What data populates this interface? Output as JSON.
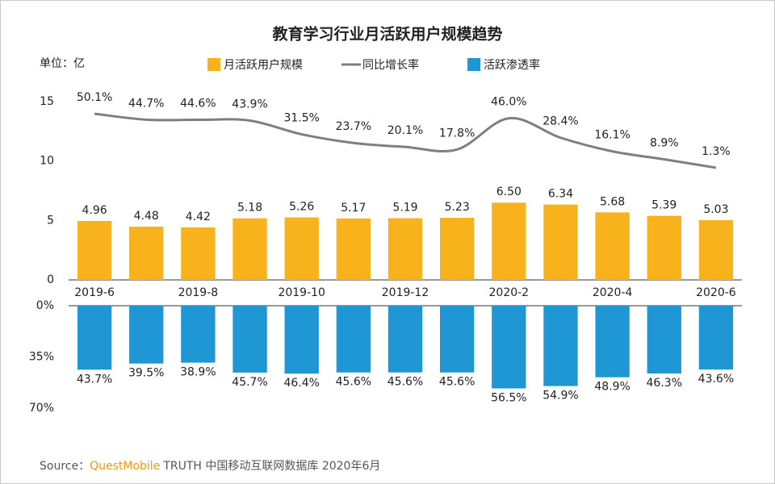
{
  "title": "教育学习行业月活跃用户规模趋势",
  "unit": "单位：亿",
  "source": {
    "prefix": "Source：",
    "brand": "QuestMobile",
    "text": "TRUTH 中国移动互联网数据库 2020年6月"
  },
  "chart_data": [
    {
      "type": "bar",
      "categories": [
        "2019-6",
        null,
        "2019-8",
        null,
        "2019-10",
        null,
        "2019-12",
        null,
        "2020-2",
        null,
        "2020-4",
        null,
        "2020-6"
      ],
      "ylim": [
        0,
        15
      ],
      "yticks": [
        0,
        5,
        10,
        15
      ],
      "y2lim": [
        -100,
        61
      ],
      "series": [
        {
          "name": "月活跃用户规模",
          "color": "#f8b21c",
          "values": [
            4.96,
            4.48,
            4.42,
            5.18,
            5.26,
            5.17,
            5.19,
            5.23,
            6.5,
            6.34,
            5.68,
            5.39,
            5.03
          ],
          "value_labels": [
            "4.96",
            "4.48",
            "4.42",
            "5.18",
            "5.26",
            "5.17",
            "5.19",
            "5.23",
            "6.50",
            "6.34",
            "5.68",
            "5.39",
            "5.03"
          ]
        },
        {
          "name": "同比增长率",
          "color": "#7f7f7f",
          "type": "line",
          "axis": "y2",
          "values": [
            50.1,
            44.7,
            44.6,
            43.9,
            31.5,
            23.7,
            20.1,
            17.8,
            46.0,
            28.4,
            16.1,
            8.9,
            1.3
          ],
          "value_labels": [
            "50.1%",
            "44.7%",
            "44.6%",
            "43.9%",
            "31.5%",
            "23.7%",
            "20.1%",
            "17.8%",
            "46.0%",
            "28.4%",
            "16.1%",
            "8.9%",
            "1.3%"
          ]
        }
      ]
    },
    {
      "type": "bar",
      "y_reversed": true,
      "ylim": [
        0,
        70
      ],
      "yticks": [
        {
          "value": 0,
          "label": "0%"
        },
        {
          "value": 35,
          "label": "35%"
        },
        {
          "value": 70,
          "label": "70%"
        }
      ],
      "series": [
        {
          "name": "活跃渗透率",
          "color": "#1f97d4",
          "values": [
            43.7,
            39.5,
            38.9,
            45.7,
            46.4,
            45.6,
            45.6,
            45.6,
            56.5,
            54.9,
            48.9,
            46.3,
            43.6
          ],
          "value_labels": [
            "43.7%",
            "39.5%",
            "38.9%",
            "45.7%",
            "46.4%",
            "45.6%",
            "45.6%",
            "45.6%",
            "56.5%",
            "54.9%",
            "48.9%",
            "46.3%",
            "43.6%"
          ]
        }
      ]
    }
  ]
}
